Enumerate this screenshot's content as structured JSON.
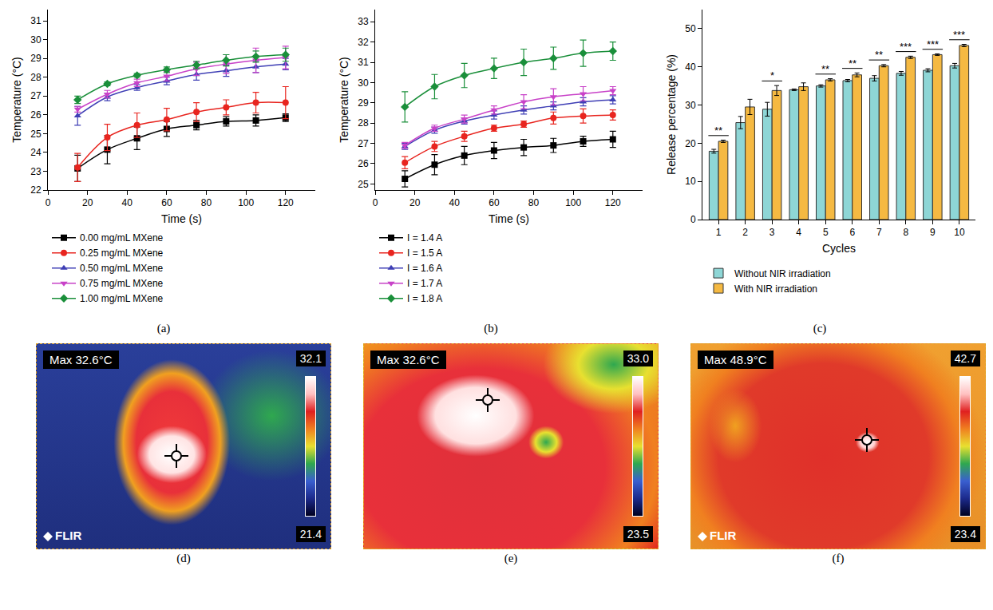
{
  "chart_data": [
    {
      "type": "line",
      "label": "(a)",
      "x_title": "Time (s)",
      "y_title": "Temperature (°C)",
      "x": [
        15,
        30,
        45,
        60,
        75,
        90,
        105,
        120
      ],
      "xlim": [
        0,
        135
      ],
      "xticks": [
        0,
        20,
        40,
        60,
        80,
        100,
        120
      ],
      "ylim": [
        22,
        31.6
      ],
      "yticks": [
        22,
        23,
        24,
        25,
        26,
        27,
        28,
        29,
        30,
        31
      ],
      "grid": false,
      "legend": "bottom",
      "series": [
        {
          "name": "0.00 mg/mL MXene",
          "color": "#000000",
          "marker": "square",
          "values": [
            23.15,
            24.15,
            24.75,
            25.25,
            25.45,
            25.65,
            25.7,
            25.85
          ],
          "errors": [
            0.7,
            0.75,
            0.6,
            0.4,
            0.25,
            0.25,
            0.3,
            0.2
          ]
        },
        {
          "name": "0.25 mg/mL MXene",
          "color": "#e8251f",
          "marker": "circle",
          "values": [
            23.2,
            24.8,
            25.45,
            25.75,
            26.15,
            26.4,
            26.65,
            26.65
          ],
          "errors": [
            0.75,
            0.7,
            0.65,
            0.6,
            0.5,
            0.4,
            0.55,
            0.85
          ]
        },
        {
          "name": "0.50 mg/mL MXene",
          "color": "#3f3fb5",
          "marker": "triangle-up",
          "values": [
            25.95,
            26.95,
            27.45,
            27.8,
            28.15,
            28.35,
            28.55,
            28.7
          ],
          "errors": [
            0.5,
            0.2,
            0.15,
            0.2,
            0.3,
            0.3,
            0.3,
            0.3
          ]
        },
        {
          "name": "0.75 mg/mL MXene",
          "color": "#c842c8",
          "marker": "triangle-down",
          "values": [
            26.3,
            27.1,
            27.7,
            28.05,
            28.45,
            28.7,
            28.9,
            29.05
          ],
          "errors": [
            0.15,
            0.2,
            0.2,
            0.25,
            0.35,
            0.5,
            0.65,
            0.6
          ]
        },
        {
          "name": "1.00 mg/mL MXene",
          "color": "#1a8f3a",
          "marker": "diamond",
          "values": [
            26.8,
            27.65,
            28.1,
            28.4,
            28.65,
            28.9,
            29.1,
            29.2
          ],
          "errors": [
            0.2,
            0.1,
            0.1,
            0.15,
            0.2,
            0.3,
            0.3,
            0.35
          ]
        }
      ]
    },
    {
      "type": "line",
      "label": "(b)",
      "x_title": "Time (s)",
      "y_title": "Temperature (°C)",
      "x": [
        15,
        30,
        45,
        60,
        75,
        90,
        105,
        120
      ],
      "xlim": [
        0,
        135
      ],
      "xticks": [
        0,
        20,
        40,
        60,
        80,
        100,
        120
      ],
      "ylim": [
        24.7,
        33.6
      ],
      "yticks": [
        25,
        26,
        27,
        28,
        29,
        30,
        31,
        32,
        33
      ],
      "grid": false,
      "legend": "bottom",
      "series": [
        {
          "name": "I = 1.4 A",
          "color": "#000000",
          "marker": "square",
          "values": [
            25.25,
            25.95,
            26.4,
            26.65,
            26.8,
            26.9,
            27.1,
            27.2
          ],
          "errors": [
            0.4,
            0.5,
            0.45,
            0.4,
            0.4,
            0.35,
            0.25,
            0.4
          ]
        },
        {
          "name": "I = 1.5 A",
          "color": "#e8251f",
          "marker": "circle",
          "values": [
            26.05,
            26.85,
            27.35,
            27.75,
            27.95,
            28.25,
            28.35,
            28.4
          ],
          "errors": [
            0.3,
            0.25,
            0.25,
            0.15,
            0.15,
            0.3,
            0.35,
            0.25
          ]
        },
        {
          "name": "I = 1.6 A",
          "color": "#3f3fb5",
          "marker": "triangle-up",
          "values": [
            26.85,
            27.65,
            28.1,
            28.4,
            28.65,
            28.85,
            29.05,
            29.15
          ],
          "errors": [
            0.15,
            0.15,
            0.15,
            0.2,
            0.2,
            0.2,
            0.2,
            0.2
          ]
        },
        {
          "name": "I = 1.7 A",
          "color": "#c842c8",
          "marker": "triangle-down",
          "values": [
            26.9,
            27.75,
            28.2,
            28.65,
            29.05,
            29.3,
            29.45,
            29.6
          ],
          "errors": [
            0.15,
            0.15,
            0.2,
            0.2,
            0.35,
            0.4,
            0.35,
            0.2
          ]
        },
        {
          "name": "I = 1.8 A",
          "color": "#1a8f3a",
          "marker": "diamond",
          "values": [
            28.8,
            29.8,
            30.35,
            30.7,
            31.0,
            31.2,
            31.45,
            31.55
          ],
          "errors": [
            0.75,
            0.6,
            0.6,
            0.5,
            0.65,
            0.55,
            0.65,
            0.45
          ]
        }
      ]
    },
    {
      "type": "bar",
      "label": "(c)",
      "x_title": "Cycles",
      "y_title": "Release percentage (%)",
      "categories": [
        "1",
        "2",
        "3",
        "4",
        "5",
        "6",
        "7",
        "8",
        "9",
        "10"
      ],
      "ylim": [
        0,
        55
      ],
      "yticks": [
        0,
        10,
        20,
        30,
        40,
        50
      ],
      "grid": false,
      "legend": "bottom",
      "significance": [
        "**",
        null,
        "*",
        null,
        "**",
        "**",
        "**",
        "***",
        "***",
        "***"
      ],
      "series": [
        {
          "name": "Without NIR irradiation",
          "color": "#8ed6d6",
          "values": [
            17.9,
            25.4,
            28.9,
            34.0,
            35.0,
            36.4,
            37.0,
            38.3,
            39.1,
            40.3
          ],
          "errors": [
            0.5,
            1.6,
            1.8,
            0.2,
            0.3,
            0.3,
            0.7,
            0.5,
            0.4,
            0.6
          ]
        },
        {
          "name": "With NIR irradiation",
          "color": "#f5b942",
          "values": [
            20.5,
            29.5,
            33.8,
            34.8,
            36.6,
            37.9,
            40.3,
            42.5,
            43.2,
            45.6
          ],
          "errors": [
            0.3,
            2.0,
            1.3,
            1.0,
            0.3,
            0.5,
            0.3,
            0.3,
            0.2,
            0.3
          ]
        }
      ]
    }
  ],
  "images": [
    {
      "label": "(d)",
      "max": "Max 32.6°C",
      "scale_max": "32.1",
      "scale_min": "21.4",
      "brand": "FLIR"
    },
    {
      "label": "(e)",
      "max": "Max 32.6°C",
      "scale_max": "33.0",
      "scale_min": "23.5"
    },
    {
      "label": "(f)",
      "max": "Max 48.9°C",
      "scale_max": "42.7",
      "scale_min": "23.4",
      "brand": "FLIR"
    }
  ]
}
